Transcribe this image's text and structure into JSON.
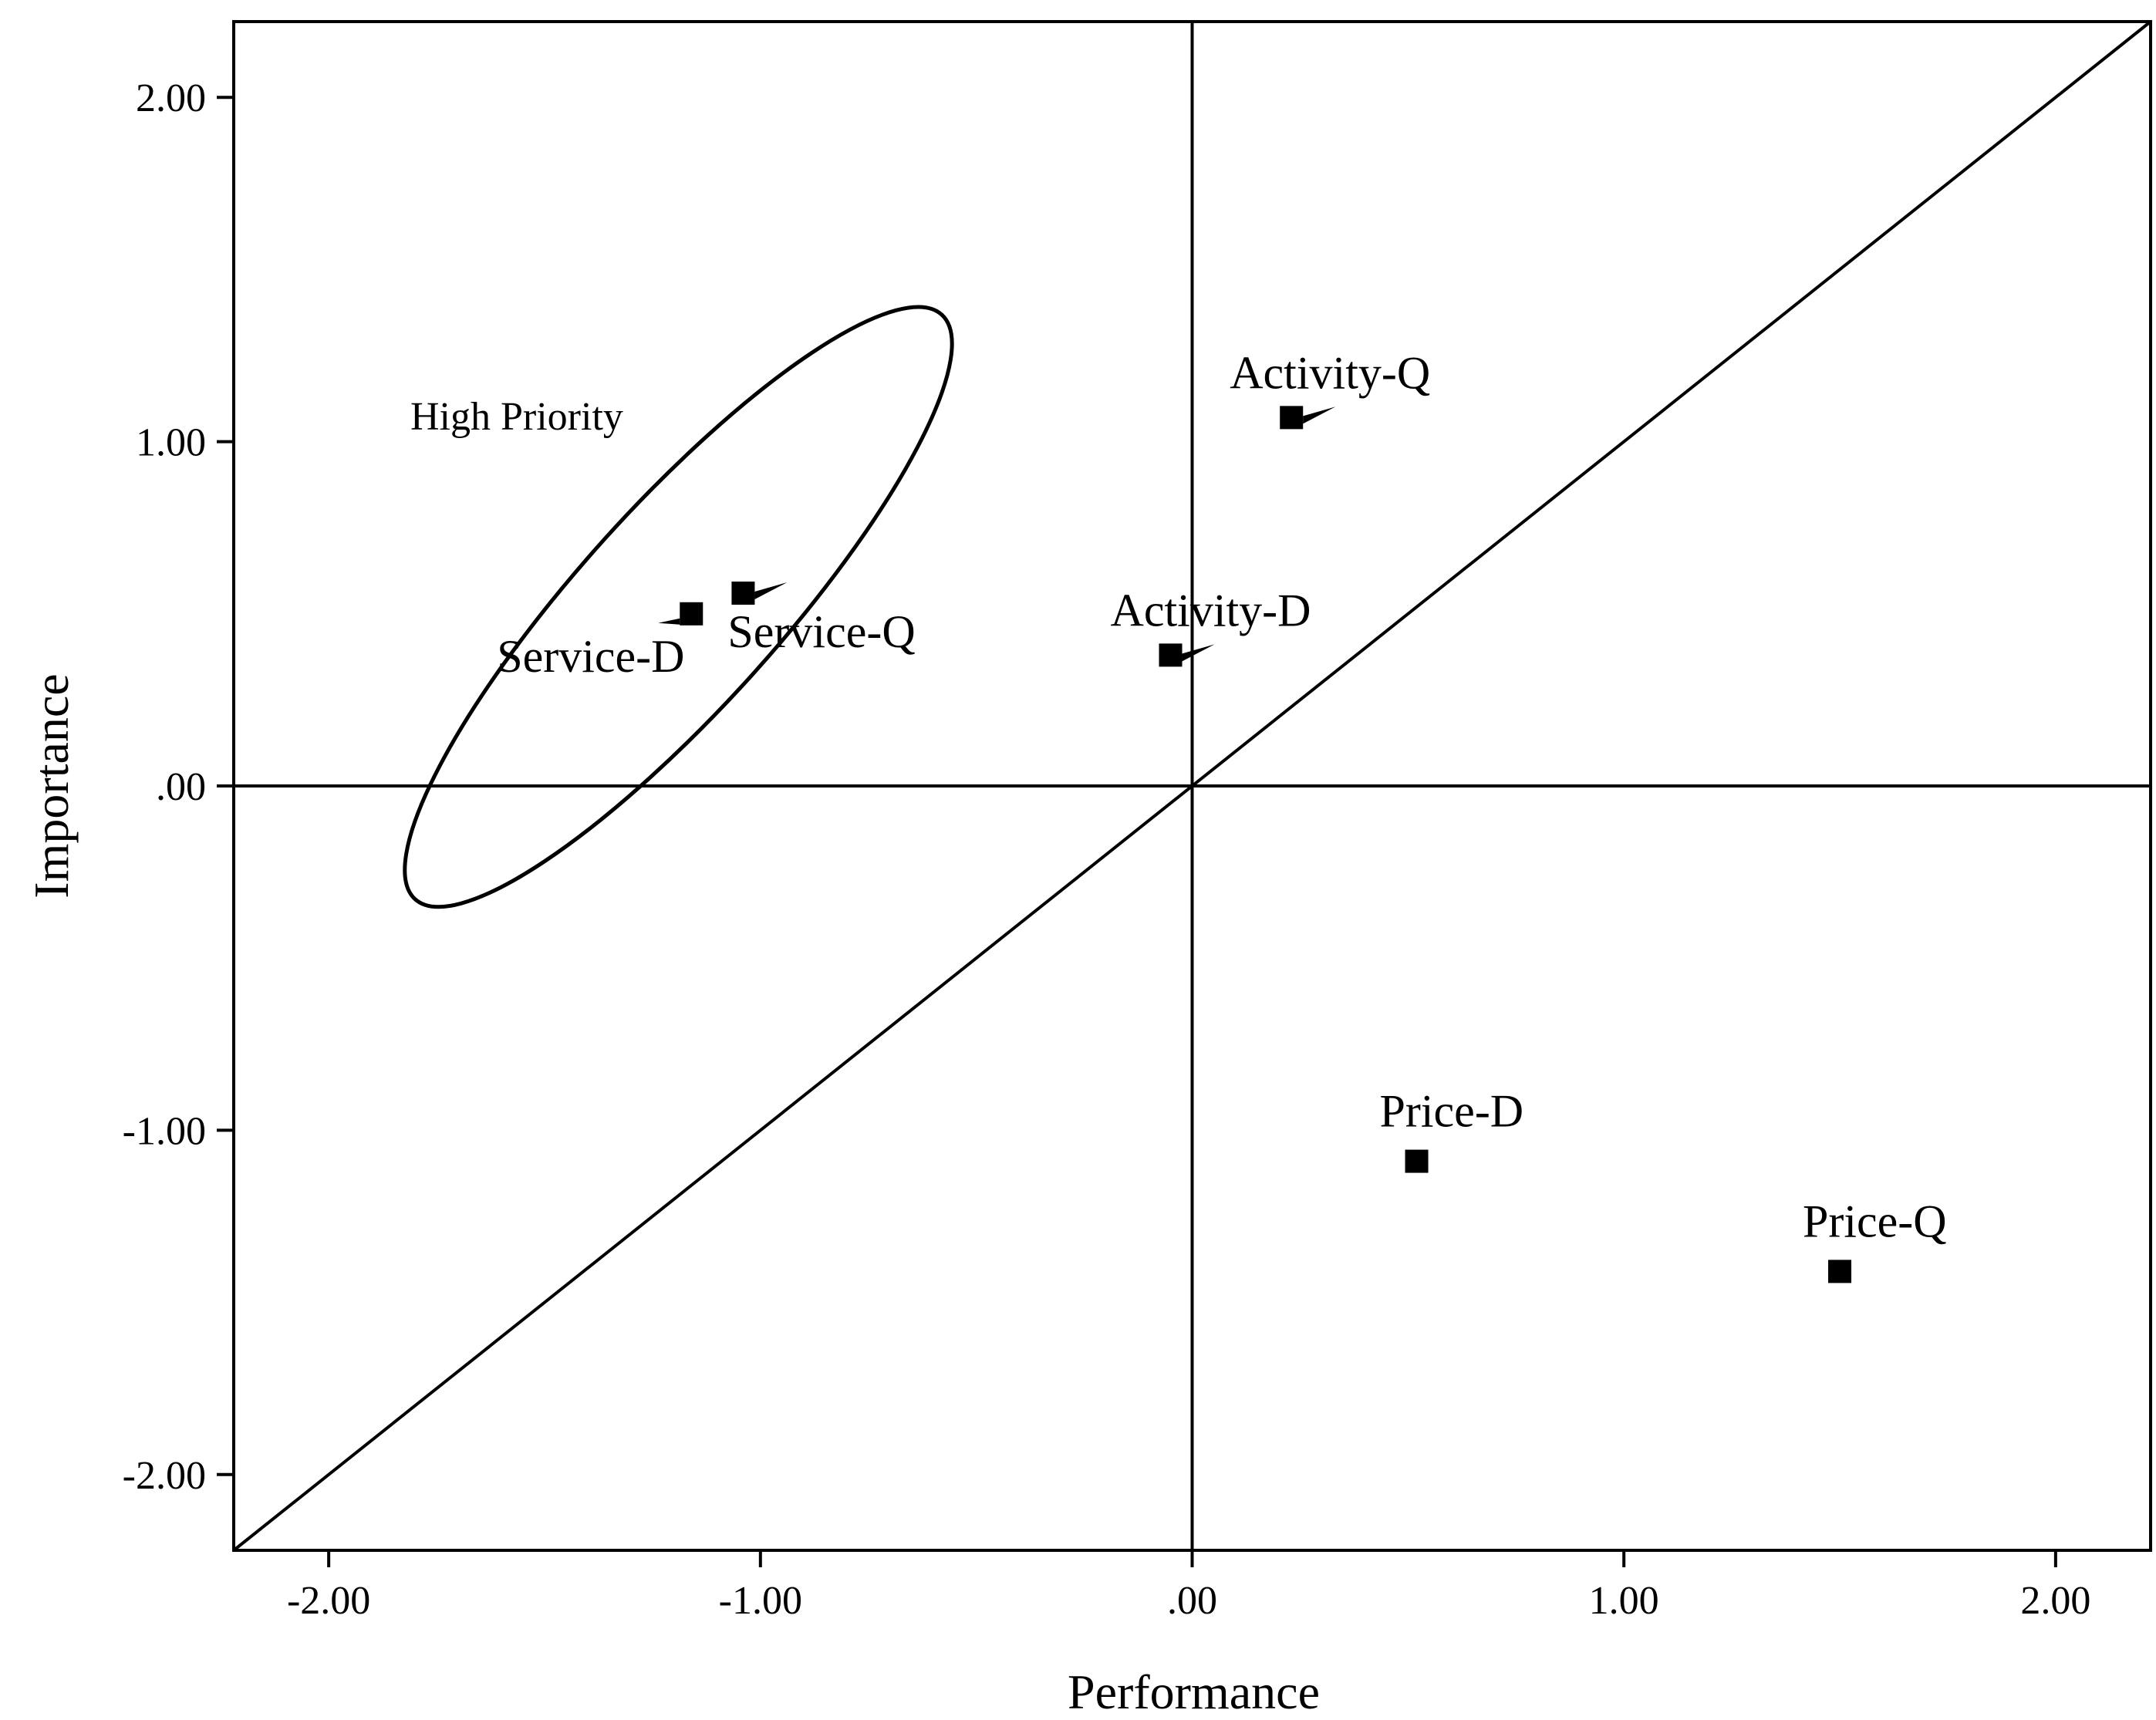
{
  "chart_data": {
    "type": "scatter",
    "xlabel": "Performance",
    "ylabel": "Importance",
    "xlim": [
      -2.22,
      2.22
    ],
    "ylim": [
      -2.22,
      2.22
    ],
    "x_ticks": [
      {
        "value": -2,
        "label": "-2.00"
      },
      {
        "value": -1,
        "label": "-1.00"
      },
      {
        "value": 0,
        "label": ".00"
      },
      {
        "value": 1,
        "label": "1.00"
      },
      {
        "value": 2,
        "label": "2.00"
      }
    ],
    "y_ticks": [
      {
        "value": 2,
        "label": "2.00"
      },
      {
        "value": 1,
        "label": "1.00"
      },
      {
        "value": 0,
        "label": ".00"
      },
      {
        "value": -1,
        "label": "-1.00"
      },
      {
        "value": -2,
        "label": "-2.00"
      }
    ],
    "reference_lines": {
      "x_zero": true,
      "y_zero": true,
      "diagonal": true
    },
    "points": [
      {
        "label": "Activity-Q",
        "x": 0.23,
        "y": 1.07
      },
      {
        "label": "Activity-D",
        "x": -0.05,
        "y": 0.38
      },
      {
        "label": "Service-D",
        "x": -1.16,
        "y": 0.5
      },
      {
        "label": "Service-Q",
        "x": -1.04,
        "y": 0.56
      },
      {
        "label": "Price-D",
        "x": 0.52,
        "y": -1.09
      },
      {
        "label": "Price-Q",
        "x": 1.5,
        "y": -1.41
      }
    ],
    "annotations": [
      {
        "text": "High Priority",
        "type": "ellipse"
      }
    ],
    "grid": false,
    "legend": "none",
    "colors": {
      "marker": "#000000",
      "line": "#000000",
      "background": "#ffffff"
    }
  }
}
